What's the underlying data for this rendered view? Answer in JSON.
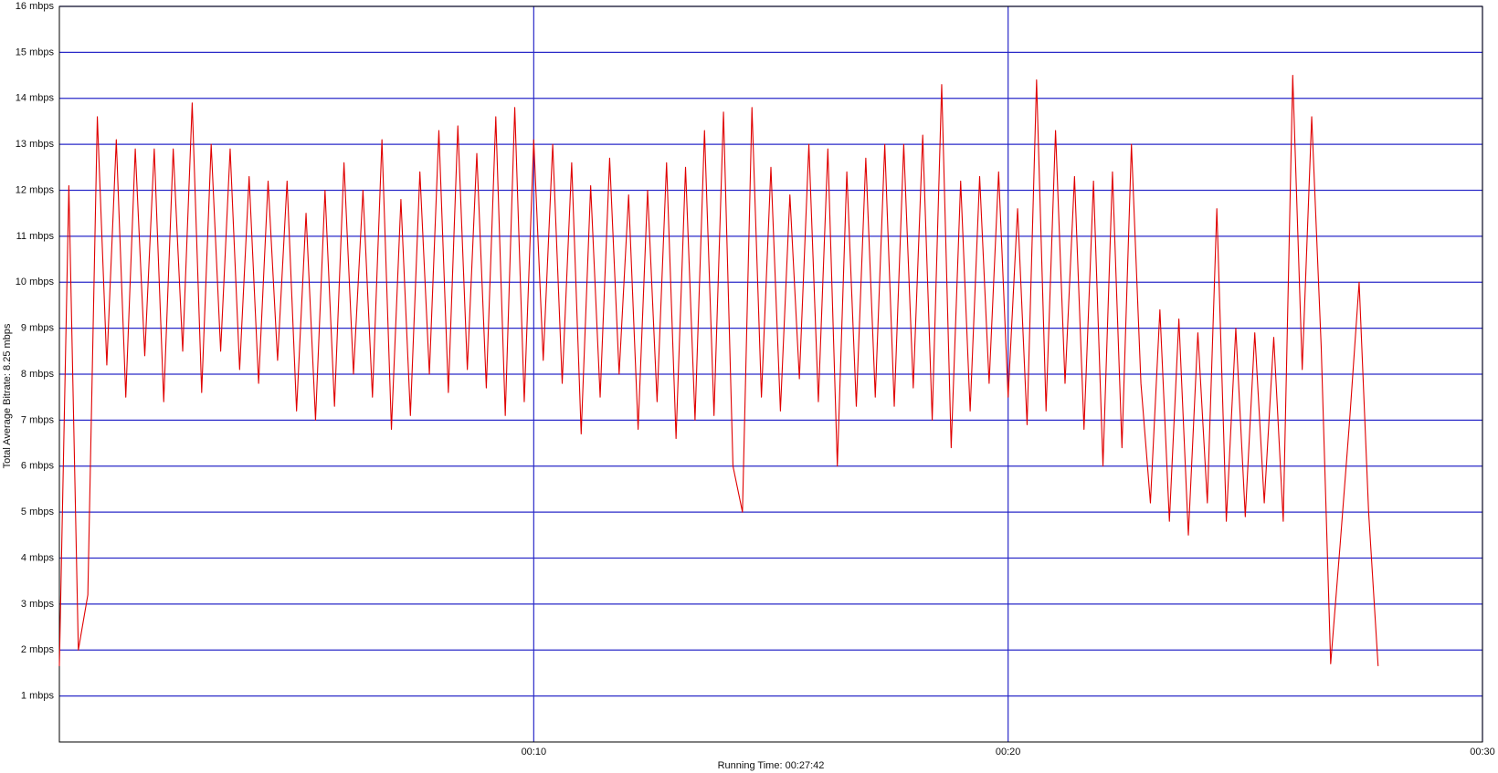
{
  "chart_data": {
    "type": "line",
    "y_label": "Total Average Bitrate: 8.25 mbps",
    "x_label": "Running Time: 00:27:42",
    "color": "#e00000",
    "grid": true,
    "xlim": [
      0,
      30
    ],
    "xticks": [
      {
        "value": 10,
        "label": "00:10"
      },
      {
        "value": 20,
        "label": "00:20"
      },
      {
        "value": 30,
        "label": "00:30"
      }
    ],
    "ylim": [
      0,
      16
    ],
    "yticks": [
      {
        "value": 1,
        "label": "1 mbps"
      },
      {
        "value": 2,
        "label": "2 mbps"
      },
      {
        "value": 3,
        "label": "3 mbps"
      },
      {
        "value": 4,
        "label": "4 mbps"
      },
      {
        "value": 5,
        "label": "5 mbps"
      },
      {
        "value": 6,
        "label": "6 mbps"
      },
      {
        "value": 7,
        "label": "7 mbps"
      },
      {
        "value": 8,
        "label": "8 mbps"
      },
      {
        "value": 9,
        "label": "9 mbps"
      },
      {
        "value": 10,
        "label": "10 mbps"
      },
      {
        "value": 11,
        "label": "11 mbps"
      },
      {
        "value": 12,
        "label": "12 mbps"
      },
      {
        "value": 13,
        "label": "13 mbps"
      },
      {
        "value": 14,
        "label": "14 mbps"
      },
      {
        "value": 15,
        "label": "15 mbps"
      },
      {
        "value": 16,
        "label": "16 mbps"
      }
    ],
    "x": [
      0,
      0.2,
      0.4,
      0.6,
      0.8,
      1.0,
      1.2,
      1.4,
      1.6,
      1.8,
      2.0,
      2.2,
      2.4,
      2.6,
      2.8,
      3.0,
      3.2,
      3.4,
      3.6,
      3.8,
      4.0,
      4.2,
      4.4,
      4.6,
      4.8,
      5.0,
      5.2,
      5.4,
      5.6,
      5.8,
      6.0,
      6.2,
      6.4,
      6.6,
      6.8,
      7.0,
      7.2,
      7.4,
      7.6,
      7.8,
      8.0,
      8.2,
      8.4,
      8.6,
      8.8,
      9.0,
      9.2,
      9.4,
      9.6,
      9.8,
      10.0,
      10.2,
      10.4,
      10.6,
      10.8,
      11.0,
      11.2,
      11.4,
      11.6,
      11.8,
      12.0,
      12.2,
      12.4,
      12.6,
      12.8,
      13.0,
      13.2,
      13.4,
      13.6,
      13.8,
      14.0,
      14.2,
      14.4,
      14.6,
      14.8,
      15.0,
      15.2,
      15.4,
      15.6,
      15.8,
      16.0,
      16.2,
      16.4,
      16.6,
      16.8,
      17.0,
      17.2,
      17.4,
      17.6,
      17.8,
      18.0,
      18.2,
      18.4,
      18.6,
      18.8,
      19.0,
      19.2,
      19.4,
      19.6,
      19.8,
      20.0,
      20.2,
      20.4,
      20.6,
      20.8,
      21.0,
      21.2,
      21.4,
      21.6,
      21.8,
      22.0,
      22.2,
      22.4,
      22.6,
      22.8,
      23.0,
      23.2,
      23.4,
      23.6,
      23.8,
      24.0,
      24.2,
      24.4,
      24.6,
      24.8,
      25.0,
      25.2,
      25.4,
      25.6,
      25.8,
      26.0,
      26.2,
      26.4,
      26.6,
      26.8,
      27.0,
      27.2,
      27.4,
      27.6,
      27.8
    ],
    "values": [
      1.65,
      12.1,
      2.0,
      3.2,
      13.6,
      8.2,
      13.1,
      7.5,
      12.9,
      8.4,
      12.9,
      7.4,
      12.9,
      8.5,
      13.9,
      7.6,
      13.0,
      8.5,
      12.9,
      8.1,
      12.3,
      7.8,
      12.2,
      8.3,
      12.2,
      7.2,
      11.5,
      7.0,
      12.0,
      7.3,
      12.6,
      8.0,
      12.0,
      7.5,
      13.1,
      6.8,
      11.8,
      7.1,
      12.4,
      8.0,
      13.3,
      7.6,
      13.4,
      8.1,
      12.8,
      7.7,
      13.6,
      7.1,
      13.8,
      7.4,
      13.1,
      8.3,
      13.0,
      7.8,
      12.6,
      6.7,
      12.1,
      7.5,
      12.7,
      8.0,
      11.9,
      6.8,
      12.0,
      7.4,
      12.6,
      6.6,
      12.5,
      7.0,
      13.3,
      7.1,
      13.7,
      6.0,
      5.0,
      13.8,
      7.5,
      12.5,
      7.2,
      11.9,
      7.9,
      13.0,
      7.4,
      12.9,
      6.0,
      12.4,
      7.3,
      12.7,
      7.5,
      13.0,
      7.3,
      13.0,
      7.7,
      13.2,
      7.0,
      14.3,
      6.4,
      12.2,
      7.2,
      12.3,
      7.8,
      12.4,
      7.5,
      11.6,
      6.9,
      14.4,
      7.2,
      13.3,
      7.8,
      12.3,
      6.8,
      12.2,
      6.0,
      12.4,
      6.4,
      13.0,
      7.8,
      5.2,
      9.4,
      4.8,
      9.2,
      4.5,
      8.9,
      5.2,
      11.6,
      4.8,
      9.0,
      4.9,
      8.9,
      5.2,
      8.8,
      4.8,
      14.5,
      8.1,
      13.6,
      8.6,
      1.7,
      4.3,
      7.0,
      10.0,
      5.0,
      1.65
    ]
  }
}
